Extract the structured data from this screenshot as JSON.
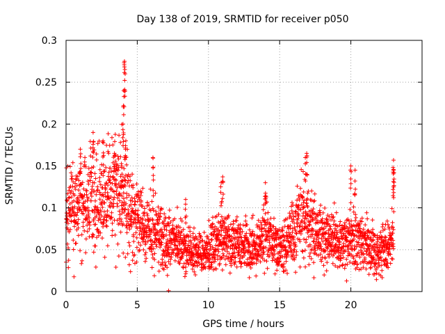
{
  "chart_data": {
    "type": "scatter",
    "title": "Day 138 of 2019, SRMTID for receiver p050",
    "xlabel": "GPS time / hours",
    "ylabel": "SRMTID / TECUs",
    "xlim": [
      0,
      25
    ],
    "ylim": [
      0,
      0.3
    ],
    "x_ticks": [
      0,
      5,
      10,
      15,
      20
    ],
    "x_tick_labels": [
      "0",
      "5",
      "10",
      "15",
      "20"
    ],
    "y_ticks": [
      0,
      0.05,
      0.1,
      0.15,
      0.2,
      0.25,
      0.3
    ],
    "y_tick_labels": [
      "0",
      "0.05",
      "0.1",
      "0.15",
      "0.2",
      "0.25",
      "0.3"
    ],
    "grid": true,
    "marker": "+",
    "color": "#ff0000",
    "series": [
      {
        "name": "SRMTID",
        "trend": [
          [
            0.0,
            0.09
          ],
          [
            0.5,
            0.1
          ],
          [
            1.0,
            0.105
          ],
          [
            1.5,
            0.11
          ],
          [
            2.0,
            0.11
          ],
          [
            2.5,
            0.105
          ],
          [
            3.0,
            0.115
          ],
          [
            3.5,
            0.125
          ],
          [
            4.0,
            0.12
          ],
          [
            4.5,
            0.095
          ],
          [
            5.0,
            0.085
          ],
          [
            5.5,
            0.08
          ],
          [
            6.0,
            0.075
          ],
          [
            6.5,
            0.07
          ],
          [
            7.0,
            0.06
          ],
          [
            7.5,
            0.058
          ],
          [
            8.0,
            0.055
          ],
          [
            8.5,
            0.05
          ],
          [
            9.0,
            0.048
          ],
          [
            9.5,
            0.047
          ],
          [
            10.0,
            0.046
          ],
          [
            10.5,
            0.06
          ],
          [
            11.0,
            0.062
          ],
          [
            11.5,
            0.06
          ],
          [
            12.0,
            0.055
          ],
          [
            12.5,
            0.053
          ],
          [
            13.0,
            0.052
          ],
          [
            13.5,
            0.055
          ],
          [
            14.0,
            0.07
          ],
          [
            14.5,
            0.055
          ],
          [
            15.0,
            0.05
          ],
          [
            15.5,
            0.06
          ],
          [
            16.0,
            0.07
          ],
          [
            16.5,
            0.09
          ],
          [
            17.0,
            0.08
          ],
          [
            17.5,
            0.07
          ],
          [
            18.0,
            0.065
          ],
          [
            18.5,
            0.065
          ],
          [
            19.0,
            0.06
          ],
          [
            19.5,
            0.06
          ],
          [
            20.0,
            0.065
          ],
          [
            20.5,
            0.06
          ],
          [
            21.0,
            0.055
          ],
          [
            21.5,
            0.05
          ],
          [
            22.0,
            0.05
          ],
          [
            22.5,
            0.055
          ],
          [
            23.0,
            0.06
          ]
        ],
        "spikes": [
          [
            1.0,
            0.17
          ],
          [
            1.9,
            0.19
          ],
          [
            2.6,
            0.18
          ],
          [
            3.4,
            0.165
          ],
          [
            3.9,
            0.15
          ],
          [
            4.0,
            0.2
          ],
          [
            4.05,
            0.24
          ],
          [
            4.1,
            0.275
          ],
          [
            4.15,
            0.26
          ],
          [
            4.2,
            0.18
          ],
          [
            6.1,
            0.16
          ],
          [
            7.2,
            0.001
          ],
          [
            8.4,
            0.11
          ],
          [
            10.9,
            0.13
          ],
          [
            11.0,
            0.137
          ],
          [
            14.0,
            0.13
          ],
          [
            16.8,
            0.16
          ],
          [
            16.9,
            0.165
          ],
          [
            20.0,
            0.15
          ],
          [
            20.3,
            0.145
          ],
          [
            23.0,
            0.157
          ],
          [
            23.0,
            0.145
          ],
          [
            23.0,
            0.125
          ]
        ]
      }
    ]
  }
}
